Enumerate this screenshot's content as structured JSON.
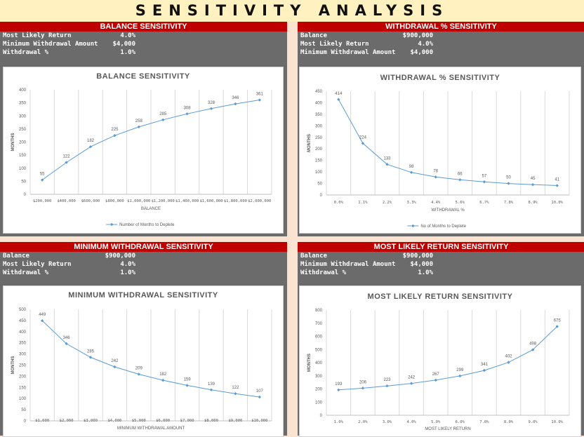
{
  "page_title": "SENSITIVITY ANALYSIS",
  "panels": [
    {
      "header": "BALANCE SENSITIVITY",
      "params": [
        {
          "label": "Most Likely Return",
          "value": "4.0%"
        },
        {
          "label": "Minimum Withdrawal Amount",
          "value": "$4,000"
        },
        {
          "label": "Withdrawal %",
          "value": "1.0%"
        }
      ]
    },
    {
      "header": "WITHDRAWAL % SENSITIVITY",
      "params": [
        {
          "label": "Balance",
          "value": "$900,000"
        },
        {
          "label": "Most Likely Return",
          "value": "4.0%"
        },
        {
          "label": "Minimum Withdrawal Amount",
          "value": "$4,000"
        }
      ]
    },
    {
      "header": "MINIMUM WITHDRAWAL SENSITIVITY",
      "params": [
        {
          "label": "Balance",
          "value": "$900,000"
        },
        {
          "label": "Most Likely Return",
          "value": "4.0%"
        },
        {
          "label": "Withdrawal %",
          "value": "1.0%"
        }
      ]
    },
    {
      "header": "MOST LIKELY RETURN SENSITIVITY",
      "params": [
        {
          "label": "Balance",
          "value": "$900,000"
        },
        {
          "label": "Minimum Withdrawal Amount",
          "value": "$4,000"
        },
        {
          "label": "Withdrawal %",
          "value": "1.0%"
        }
      ]
    }
  ],
  "chart_data": [
    {
      "type": "line",
      "title": "BALANCE SENSITIVITY",
      "xlabel": "BALANCE",
      "ylabel": "MONTHS",
      "ylim": [
        0,
        400
      ],
      "yticks": [
        "0",
        "50",
        "100",
        "150",
        "200",
        "250",
        "300",
        "350",
        "400"
      ],
      "categories": [
        "$200,000",
        "$400,000",
        "$600,000",
        "$800,000",
        "$1,000,000",
        "$1,200,000",
        "$1,400,000",
        "$1,600,000",
        "$1,800,000",
        "$2,000,000"
      ],
      "series": [
        {
          "name": "Number of Months to Deplete",
          "values": [
            55,
            122,
            182,
            225,
            258,
            285,
            308,
            328,
            346,
            361
          ]
        }
      ],
      "data_labels": [
        "55",
        "122",
        "182",
        "225",
        "258",
        "285",
        "308",
        "328",
        "346",
        "361"
      ],
      "legend": "bottom",
      "grid": "vertical",
      "color": "#5b9bd5"
    },
    {
      "type": "line",
      "title": "WITHDRAWAL % SENSITIVITY",
      "xlabel": "WITHDRAWAL %",
      "ylabel": "MONTHS",
      "ylim": [
        0,
        450
      ],
      "yticks": [
        "0",
        "50",
        "100",
        "150",
        "200",
        "250",
        "300",
        "350",
        "400",
        "450"
      ],
      "categories": [
        "0.0%",
        "1.1%",
        "2.2%",
        "3.3%",
        "4.4%",
        "5.6%",
        "6.7%",
        "7.8%",
        "8.9%",
        "10.0%"
      ],
      "series": [
        {
          "name": "No of Months to Deplete",
          "values": [
            414,
            224,
            133,
            98,
            78,
            66,
            57,
            50,
            45,
            41
          ]
        }
      ],
      "data_labels": [
        "414",
        "224",
        "133",
        "98",
        "78",
        "66",
        "57",
        "50",
        "45",
        "41"
      ],
      "legend": "bottom",
      "grid": "vertical",
      "color": "#5b9bd5"
    },
    {
      "type": "line",
      "title": "MINIMUM WITHDRAWAL SENSITIVITY",
      "xlabel": "MINIMUM WITHDRAWAL AMOUNT",
      "ylabel": "MONTHS",
      "ylim": [
        0,
        500
      ],
      "yticks": [
        "0",
        "50",
        "100",
        "150",
        "200",
        "250",
        "300",
        "350",
        "400",
        "450",
        "500"
      ],
      "categories": [
        "$1,000",
        "$2,000",
        "$3,000",
        "$4,000",
        "$5,000",
        "$6,000",
        "$7,000",
        "$8,000",
        "$9,000",
        "$10,000"
      ],
      "series": [
        {
          "values": [
            449,
            346,
            285,
            242,
            209,
            182,
            159,
            139,
            122,
            107
          ]
        }
      ],
      "data_labels": [
        "449",
        "346",
        "285",
        "242",
        "209",
        "182",
        "159",
        "139",
        "122",
        "107"
      ],
      "grid": "vertical",
      "color": "#5b9bd5"
    },
    {
      "type": "line",
      "title": "MOST LIKELY RETURN SENSITIVITY",
      "xlabel": "MOST LIKELY RETURN",
      "ylabel": "MONTHS",
      "ylim": [
        0,
        800
      ],
      "yticks": [
        "0",
        "100",
        "200",
        "300",
        "400",
        "500",
        "600",
        "700",
        "800"
      ],
      "categories": [
        "1.0%",
        "2.0%",
        "3.0%",
        "4.0%",
        "5.0%",
        "6.0%",
        "7.0%",
        "8.0%",
        "9.0%",
        "10.0%"
      ],
      "series": [
        {
          "values": [
            193,
            206,
            223,
            242,
            267,
            299,
            341,
            402,
            498,
            675
          ]
        }
      ],
      "data_labels": [
        "193",
        "206",
        "223",
        "242",
        "267",
        "299",
        "341",
        "402",
        "498",
        "675"
      ],
      "grid": "vertical",
      "color": "#5b9bd5"
    }
  ]
}
